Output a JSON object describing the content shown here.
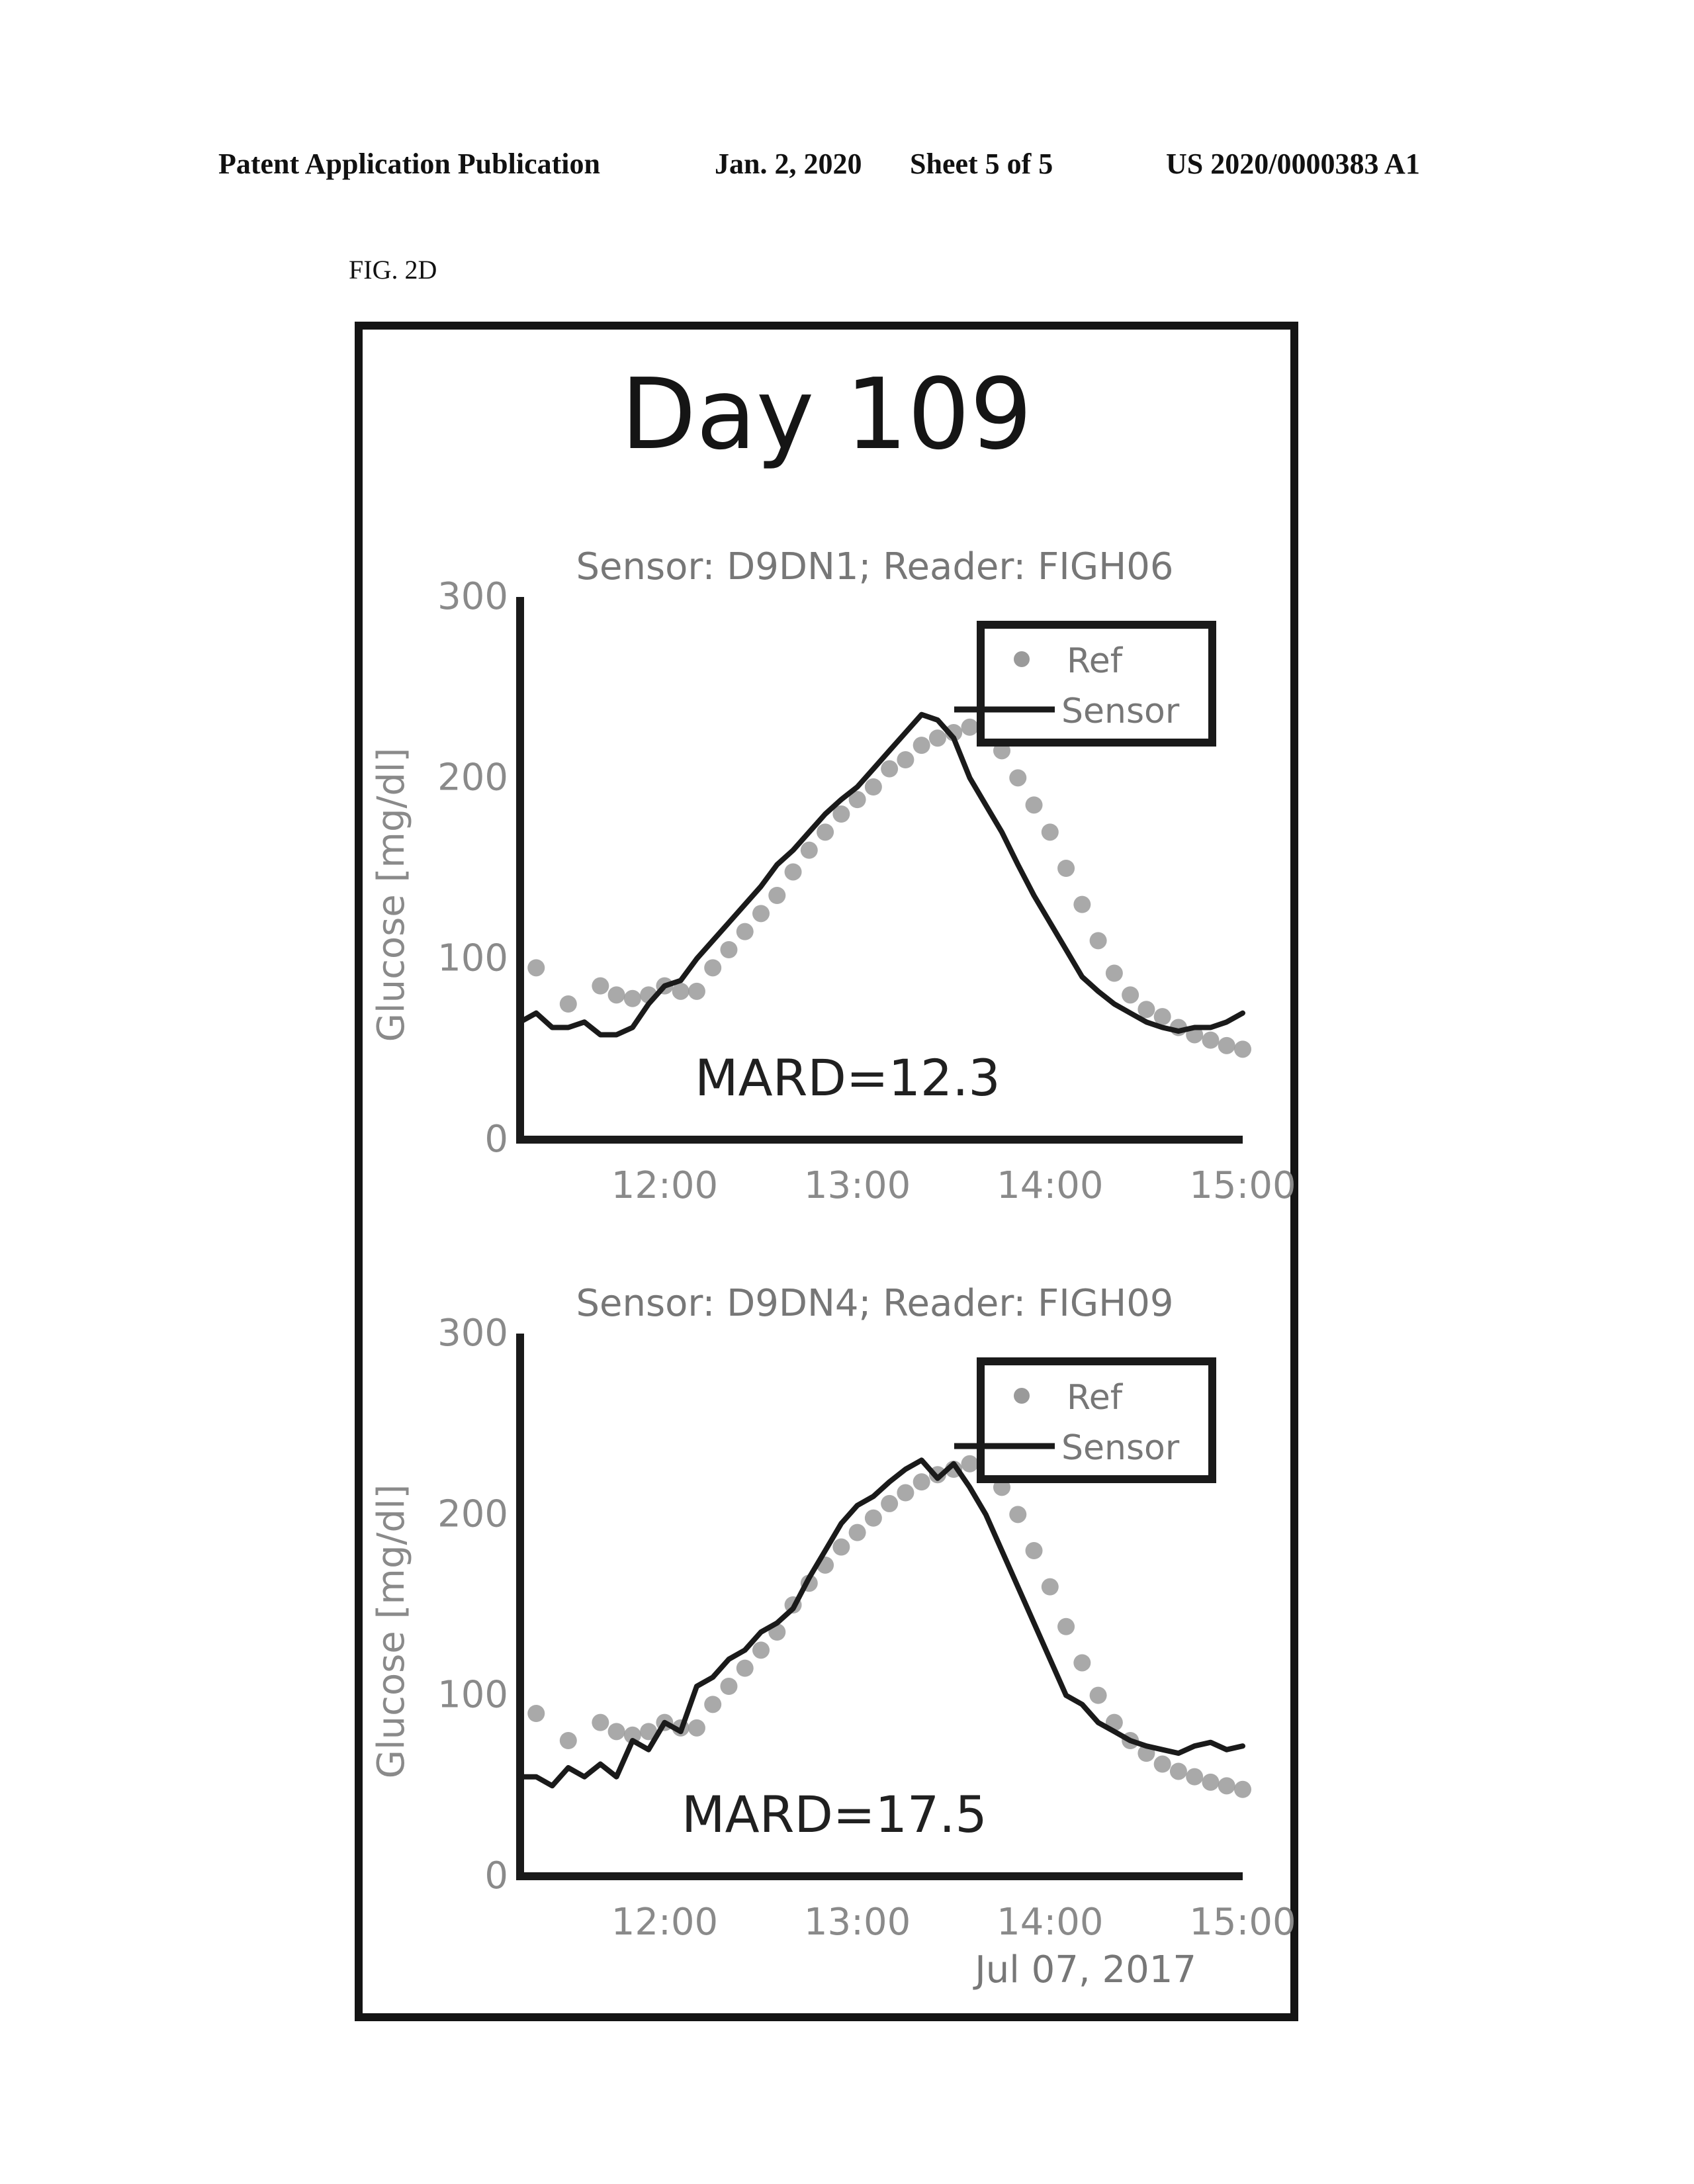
{
  "header": {
    "publication": "Patent Application Publication",
    "date": "Jan. 2, 2020",
    "sheet": "Sheet 5 of 5",
    "number": "US 2020/0000383 A1"
  },
  "figure": {
    "label": "FIG. 2D",
    "title": "Day 109",
    "date_label": "Jul 07, 2017"
  },
  "colors": {
    "ref_marker": "#9a9a9a",
    "sensor_line": "#1a1a1a",
    "axis": "#1a1a1a",
    "legend_box": "#1a1a1a"
  },
  "chart_data": [
    {
      "type": "scatter",
      "title": "Sensor: D9DN1; Reader: FIGH06",
      "ylabel": "Glucose [mg/dl]",
      "xlabel": "",
      "yticks": [
        0,
        100,
        200,
        300
      ],
      "xticks": [
        "12:00",
        "13:00",
        "14:00",
        "15:00"
      ],
      "xlim": [
        "11:15",
        "15:00"
      ],
      "ylim": [
        0,
        300
      ],
      "legend": {
        "position": "top-right",
        "entries": [
          "Ref",
          "Sensor"
        ]
      },
      "annotation": "MARD=12.3",
      "series": [
        {
          "name": "Ref",
          "style": "marker",
          "x": [
            "11:20",
            "11:30",
            "11:40",
            "11:45",
            "11:50",
            "11:55",
            "12:00",
            "12:05",
            "12:10",
            "12:15",
            "12:20",
            "12:25",
            "12:30",
            "12:35",
            "12:40",
            "12:45",
            "12:50",
            "12:55",
            "13:00",
            "13:05",
            "13:10",
            "13:15",
            "13:20",
            "13:25",
            "13:30",
            "13:35",
            "13:40",
            "13:45",
            "13:50",
            "13:55",
            "14:00",
            "14:05",
            "14:10",
            "14:15",
            "14:20",
            "14:25",
            "14:30",
            "14:35",
            "14:40",
            "14:45",
            "14:50",
            "14:55",
            "15:00"
          ],
          "y": [
            95,
            75,
            85,
            80,
            78,
            80,
            85,
            82,
            82,
            95,
            105,
            115,
            125,
            135,
            148,
            160,
            170,
            180,
            188,
            195,
            205,
            210,
            218,
            222,
            225,
            228,
            228,
            215,
            200,
            185,
            170,
            150,
            130,
            110,
            92,
            80,
            72,
            68,
            62,
            58,
            55,
            52,
            50
          ]
        },
        {
          "name": "Sensor",
          "style": "line",
          "x": [
            "11:15",
            "11:20",
            "11:25",
            "11:30",
            "11:35",
            "11:40",
            "11:45",
            "11:50",
            "11:55",
            "12:00",
            "12:05",
            "12:10",
            "12:15",
            "12:20",
            "12:25",
            "12:30",
            "12:35",
            "12:40",
            "12:45",
            "12:50",
            "12:55",
            "13:00",
            "13:05",
            "13:10",
            "13:15",
            "13:20",
            "13:25",
            "13:30",
            "13:35",
            "13:40",
            "13:45",
            "13:50",
            "13:55",
            "14:00",
            "14:05",
            "14:10",
            "14:15",
            "14:20",
            "14:25",
            "14:30",
            "14:35",
            "14:40",
            "14:45",
            "14:50",
            "14:55",
            "15:00"
          ],
          "y": [
            65,
            70,
            62,
            62,
            65,
            58,
            58,
            62,
            75,
            85,
            88,
            100,
            110,
            120,
            130,
            140,
            152,
            160,
            170,
            180,
            188,
            195,
            205,
            215,
            225,
            235,
            232,
            222,
            200,
            185,
            170,
            152,
            135,
            120,
            105,
            90,
            82,
            75,
            70,
            65,
            62,
            60,
            62,
            62,
            65,
            70
          ]
        }
      ]
    },
    {
      "type": "scatter",
      "title": "Sensor: D9DN4; Reader: FIGH09",
      "ylabel": "Glucose [mg/dl]",
      "xlabel": "",
      "yticks": [
        0,
        100,
        200,
        300
      ],
      "xticks": [
        "12:00",
        "13:00",
        "14:00",
        "15:00"
      ],
      "xlim": [
        "11:15",
        "15:00"
      ],
      "ylim": [
        0,
        300
      ],
      "legend": {
        "position": "top-right",
        "entries": [
          "Ref",
          "Sensor"
        ]
      },
      "annotation": "MARD=17.5",
      "series": [
        {
          "name": "Ref",
          "style": "marker",
          "x": [
            "11:20",
            "11:30",
            "11:40",
            "11:45",
            "11:50",
            "11:55",
            "12:00",
            "12:05",
            "12:10",
            "12:15",
            "12:20",
            "12:25",
            "12:30",
            "12:35",
            "12:40",
            "12:45",
            "12:50",
            "12:55",
            "13:00",
            "13:05",
            "13:10",
            "13:15",
            "13:20",
            "13:25",
            "13:30",
            "13:35",
            "13:40",
            "13:45",
            "13:50",
            "13:55",
            "14:00",
            "14:05",
            "14:10",
            "14:15",
            "14:20",
            "14:25",
            "14:30",
            "14:35",
            "14:40",
            "14:45",
            "14:50",
            "14:55",
            "15:00"
          ],
          "y": [
            90,
            75,
            85,
            80,
            78,
            80,
            85,
            82,
            82,
            95,
            105,
            115,
            125,
            135,
            150,
            162,
            172,
            182,
            190,
            198,
            206,
            212,
            218,
            222,
            225,
            228,
            228,
            215,
            200,
            180,
            160,
            138,
            118,
            100,
            85,
            75,
            68,
            62,
            58,
            55,
            52,
            50,
            48
          ]
        },
        {
          "name": "Sensor",
          "style": "line",
          "x": [
            "11:15",
            "11:20",
            "11:25",
            "11:30",
            "11:35",
            "11:40",
            "11:45",
            "11:50",
            "11:55",
            "12:00",
            "12:05",
            "12:10",
            "12:15",
            "12:20",
            "12:25",
            "12:30",
            "12:35",
            "12:40",
            "12:45",
            "12:50",
            "12:55",
            "13:00",
            "13:05",
            "13:10",
            "13:15",
            "13:20",
            "13:25",
            "13:30",
            "13:35",
            "13:40",
            "13:45",
            "13:50",
            "13:55",
            "14:00",
            "14:05",
            "14:10",
            "14:15",
            "14:20",
            "14:25",
            "14:30",
            "14:35",
            "14:40",
            "14:45",
            "14:50",
            "14:55",
            "15:00"
          ],
          "y": [
            55,
            55,
            50,
            60,
            55,
            62,
            55,
            75,
            70,
            85,
            80,
            105,
            110,
            120,
            125,
            135,
            140,
            148,
            165,
            180,
            195,
            205,
            210,
            218,
            225,
            230,
            220,
            228,
            215,
            200,
            180,
            160,
            140,
            120,
            100,
            95,
            85,
            80,
            75,
            72,
            70,
            68,
            72,
            74,
            70,
            72
          ]
        }
      ]
    }
  ]
}
